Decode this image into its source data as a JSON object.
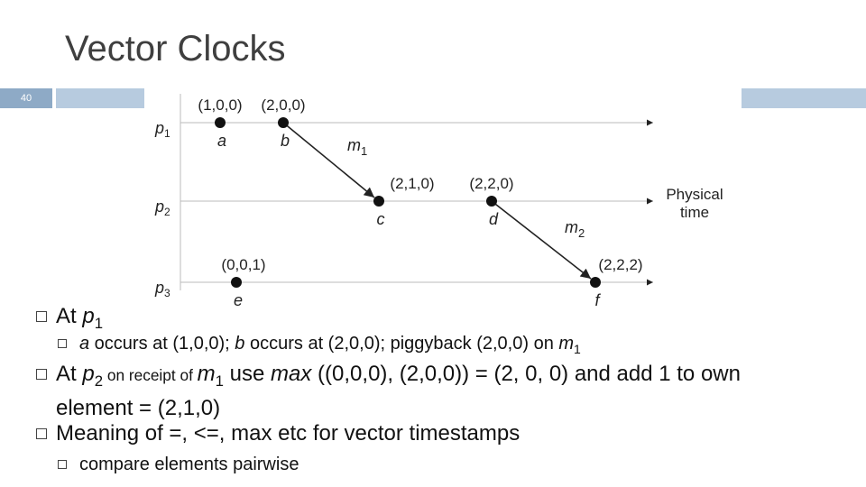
{
  "title": "Vector Clocks",
  "slide_number": "40",
  "diagram": {
    "processes": [
      {
        "name": "p",
        "index": "1"
      },
      {
        "name": "p",
        "index": "2"
      },
      {
        "name": "p",
        "index": "3"
      }
    ],
    "events": [
      {
        "label": "a",
        "timestamp": "(1,0,0)"
      },
      {
        "label": "b",
        "timestamp": "(2,0,0)"
      },
      {
        "label": "c",
        "timestamp": "(2,1,0)"
      },
      {
        "label": "d",
        "timestamp": "(2,2,0)"
      },
      {
        "label": "e",
        "timestamp": "(0,0,1)"
      },
      {
        "label": "f",
        "timestamp": "(2,2,2)"
      }
    ],
    "messages": [
      {
        "name": "m",
        "index": "1"
      },
      {
        "name": "m",
        "index": "2"
      }
    ],
    "axis_label": [
      "Physical",
      "time"
    ]
  },
  "bullets": [
    {
      "level": 0,
      "runs": [
        {
          "t": "At "
        },
        {
          "t": "p",
          "s": "i"
        },
        {
          "t": "1",
          "s": "sub"
        }
      ]
    },
    {
      "level": 1,
      "runs": [
        {
          "t": "a",
          "s": "i"
        },
        {
          "t": " occurs at (1,0,0); "
        },
        {
          "t": "b",
          "s": "i"
        },
        {
          "t": " occurs at (2,0,0); piggyback  (2,0,0) on "
        },
        {
          "t": "m",
          "s": "i"
        },
        {
          "t": "1",
          "s": "sub"
        }
      ]
    },
    {
      "level": 0,
      "runs": [
        {
          "t": "At "
        },
        {
          "t": "p",
          "s": "i"
        },
        {
          "t": "2",
          "s": "sub"
        },
        {
          "t": " on receipt of ",
          "s": "small"
        },
        {
          "t": "m",
          "s": "i"
        },
        {
          "t": "1",
          "s": "sub"
        },
        {
          "t": " use "
        },
        {
          "t": "max",
          "s": "i"
        },
        {
          "t": " ((0,0,0), (2,0,0)) = (2, 0, 0) and add 1 to own element = (2,1,0)"
        }
      ]
    },
    {
      "level": 0,
      "runs": [
        {
          "t": "Meaning of =, <=, max etc for vector timestamps"
        }
      ]
    },
    {
      "level": 1,
      "runs": [
        {
          "t": "compare elements pairwise"
        }
      ]
    }
  ]
}
